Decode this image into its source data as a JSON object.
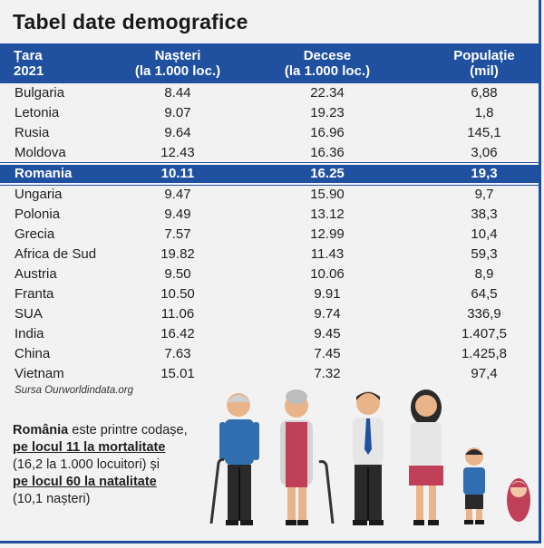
{
  "title": "Tabel date demografice",
  "table": {
    "headers": {
      "country_line1": "Țara",
      "country_line2": "2021",
      "births_line1": "Nașteri",
      "births_line2": "(la 1.000 loc.)",
      "deaths_line1": "Decese",
      "deaths_line2": "(la 1.000 loc.)",
      "pop_line1": "Populație",
      "pop_line2": "(mil)"
    },
    "rows": [
      {
        "country": "Bulgaria",
        "births": "8.44",
        "deaths": "22.34",
        "population": "6,88"
      },
      {
        "country": "Letonia",
        "births": "9.07",
        "deaths": "19.23",
        "population": "1,8"
      },
      {
        "country": "Rusia",
        "births": "9.64",
        "deaths": "16.96",
        "population": "145,1"
      },
      {
        "country": "Moldova",
        "births": "12.43",
        "deaths": "16.36",
        "population": "3,06"
      },
      {
        "country": "Romania",
        "births": "10.11",
        "deaths": "16.25",
        "population": "19,3"
      },
      {
        "country": "Ungaria",
        "births": "9.47",
        "deaths": "15.90",
        "population": "9,7"
      },
      {
        "country": "Polonia",
        "births": "9.49",
        "deaths": "13.12",
        "population": "38,3"
      },
      {
        "country": "Grecia",
        "births": "7.57",
        "deaths": "12.99",
        "population": "10,4"
      },
      {
        "country": "Africa de Sud",
        "births": "19.82",
        "deaths": "11.43",
        "population": "59,3"
      },
      {
        "country": "Austria",
        "births": "9.50",
        "deaths": "10.06",
        "population": "8,9"
      },
      {
        "country": "Franta",
        "births": "10.50",
        "deaths": "9.91",
        "population": "64,5"
      },
      {
        "country": "SUA",
        "births": "11.06",
        "deaths": "9.74",
        "population": "336,9"
      },
      {
        "country": "India",
        "births": "16.42",
        "deaths": "9.45",
        "population": "1.407,5"
      },
      {
        "country": "China",
        "births": "7.63",
        "deaths": "7.45",
        "population": "1.425,8"
      },
      {
        "country": "Vietnam",
        "births": "15.01",
        "deaths": "7.32",
        "population": "97,4"
      }
    ],
    "highlight_country": "Romania"
  },
  "source": "Sursa Ourworldindata.org",
  "note": {
    "part1": "România",
    "part2": " este printre codașe,",
    "part3": "pe locul 11 la mortalitate",
    "part4": "(16,2 la 1.000 locuitori) și",
    "part5": "pe locul 60 la natalitate",
    "part6": "(10,1 nașteri)"
  },
  "colors": {
    "accent": "#2050a0",
    "background": "#f2f2f2"
  },
  "illustration": [
    "grandfather-figure",
    "grandmother-figure",
    "father-figure",
    "mother-figure",
    "child-figure",
    "baby-figure"
  ]
}
